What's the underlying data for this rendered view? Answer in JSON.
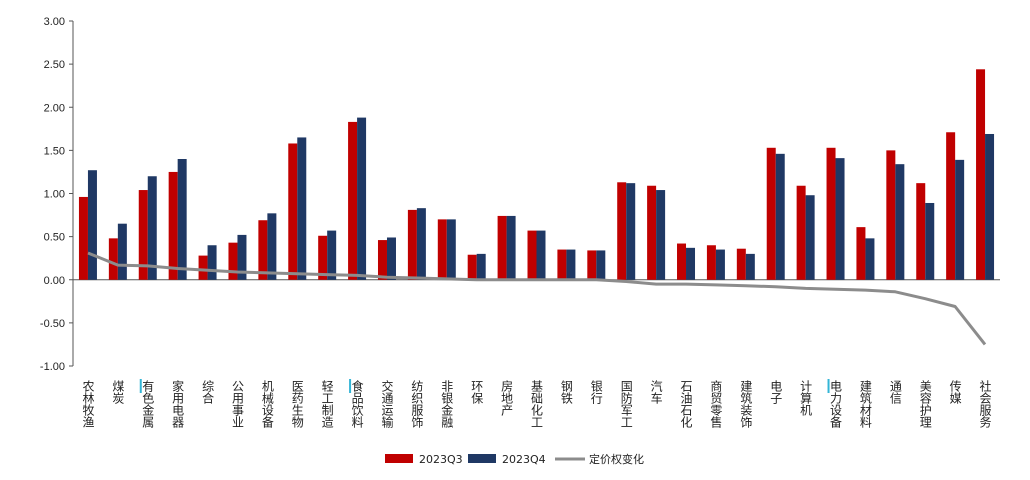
{
  "chart_data": {
    "type": "bar",
    "ylim": [
      -1.0,
      3.0
    ],
    "yticks": [
      "3.00",
      "2.50",
      "2.00",
      "1.50",
      "1.00",
      "0.50",
      "0.00",
      "-0.50",
      "-1.00"
    ],
    "categories": [
      "农林牧渔",
      "煤炭",
      "有色金属",
      "家用电器",
      "综合",
      "公用事业",
      "机械设备",
      "医药生物",
      "轻工制造",
      "食品饮料",
      "交通运输",
      "纺织服饰",
      "非银金融",
      "环保",
      "房地产",
      "基础化工",
      "钢铁",
      "银行",
      "国防军工",
      "汽车",
      "石油石化",
      "商贸零售",
      "建筑装饰",
      "电子",
      "计算机",
      "电力设备",
      "建筑材料",
      "通信",
      "美容护理",
      "传媒",
      "社会服务"
    ],
    "highlighted": [
      "有色金属",
      "食品饮料",
      "电力设备"
    ],
    "series": [
      {
        "name": "2023Q3",
        "kind": "bar",
        "color": "#c00000",
        "values": [
          0.96,
          0.48,
          1.04,
          1.25,
          0.28,
          0.43,
          0.69,
          1.58,
          0.51,
          1.83,
          0.46,
          0.81,
          0.7,
          0.29,
          0.74,
          0.57,
          0.35,
          0.34,
          1.13,
          1.09,
          0.42,
          0.4,
          0.36,
          1.53,
          1.09,
          1.53,
          0.61,
          1.5,
          1.12,
          1.71,
          2.44
        ]
      },
      {
        "name": "2023Q4",
        "kind": "bar",
        "color": "#1f3864",
        "values": [
          1.27,
          0.65,
          1.2,
          1.4,
          0.4,
          0.52,
          0.77,
          1.65,
          0.57,
          1.88,
          0.49,
          0.83,
          0.7,
          0.3,
          0.74,
          0.57,
          0.35,
          0.34,
          1.12,
          1.04,
          0.37,
          0.35,
          0.3,
          1.46,
          0.98,
          1.41,
          0.48,
          1.34,
          0.89,
          1.39,
          1.69
        ]
      },
      {
        "name": "定价权变化",
        "kind": "line",
        "color": "#8c8c8c",
        "values": [
          0.31,
          0.17,
          0.16,
          0.13,
          0.11,
          0.09,
          0.08,
          0.07,
          0.06,
          0.05,
          0.03,
          0.02,
          0.01,
          0.0,
          0.0,
          0.0,
          0.0,
          0.0,
          -0.02,
          -0.05,
          -0.05,
          -0.06,
          -0.07,
          -0.08,
          -0.1,
          -0.11,
          -0.12,
          -0.14,
          -0.22,
          -0.31,
          -0.75
        ]
      }
    ],
    "legend_position": "bottom",
    "grid": false
  }
}
